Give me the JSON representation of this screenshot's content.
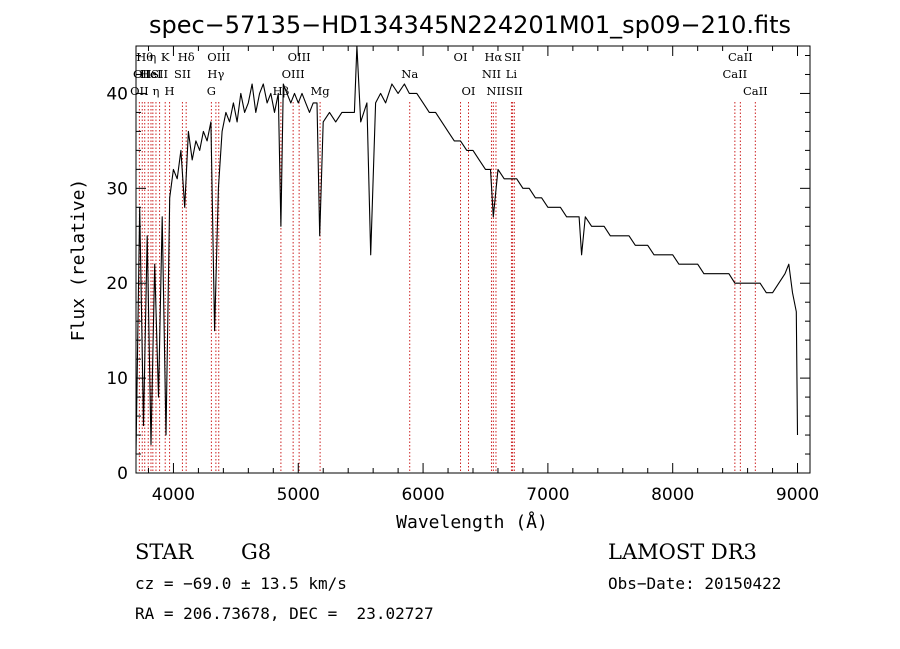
{
  "chart_data": {
    "type": "line",
    "title": "spec−57135−HD134345N224201M01_sp09−210.fits",
    "xlabel": "Wavelength (Å)",
    "ylabel": "Flux (relative)",
    "xlim": [
      3700,
      9100
    ],
    "ylim": [
      0,
      45
    ],
    "xticks": [
      4000,
      5000,
      6000,
      7000,
      8000,
      9000
    ],
    "yticks": [
      0,
      10,
      20,
      30,
      40
    ],
    "grid": false,
    "series": [
      {
        "name": "flux",
        "x": [
          3700,
          3730,
          3760,
          3790,
          3820,
          3850,
          3880,
          3910,
          3940,
          3970,
          4000,
          4030,
          4060,
          4090,
          4120,
          4150,
          4180,
          4210,
          4240,
          4270,
          4300,
          4330,
          4360,
          4390,
          4420,
          4450,
          4480,
          4510,
          4540,
          4570,
          4600,
          4630,
          4660,
          4690,
          4720,
          4750,
          4780,
          4810,
          4840,
          4861,
          4880,
          4910,
          4940,
          4970,
          5000,
          5030,
          5060,
          5090,
          5120,
          5150,
          5172,
          5200,
          5250,
          5300,
          5350,
          5400,
          5450,
          5470,
          5500,
          5550,
          5580,
          5620,
          5660,
          5700,
          5750,
          5800,
          5850,
          5890,
          5950,
          6000,
          6050,
          6100,
          6150,
          6200,
          6250,
          6300,
          6350,
          6400,
          6450,
          6500,
          6540,
          6563,
          6600,
          6650,
          6700,
          6750,
          6800,
          6850,
          6900,
          6950,
          7000,
          7050,
          7100,
          7150,
          7200,
          7250,
          7270,
          7300,
          7350,
          7400,
          7450,
          7500,
          7550,
          7600,
          7650,
          7700,
          7750,
          7800,
          7850,
          7900,
          7950,
          8000,
          8050,
          8100,
          8150,
          8200,
          8250,
          8300,
          8350,
          8400,
          8450,
          8498,
          8542,
          8600,
          8662,
          8700,
          8750,
          8800,
          8850,
          8900,
          8930,
          8960,
          8990,
          9000
        ],
        "values": [
          2,
          28,
          5,
          25,
          3,
          22,
          8,
          27,
          4,
          29,
          32,
          31,
          34,
          28,
          36,
          33,
          35,
          34,
          36,
          35,
          37,
          15,
          30,
          36,
          38,
          37,
          39,
          37,
          40,
          38,
          39,
          41,
          38,
          40,
          41,
          39,
          40,
          38,
          40,
          26,
          41,
          40,
          39,
          40,
          39,
          40,
          39,
          38,
          39,
          39,
          25,
          37,
          38,
          37,
          38,
          38,
          38,
          45,
          37,
          39,
          23,
          39,
          40,
          39,
          41,
          40,
          41,
          40,
          40,
          39,
          38,
          38,
          37,
          36,
          35,
          35,
          34,
          34,
          33,
          32,
          32,
          27,
          32,
          31,
          31,
          31,
          30,
          30,
          29,
          29,
          28,
          28,
          28,
          27,
          27,
          27,
          23,
          27,
          26,
          26,
          26,
          25,
          25,
          25,
          25,
          24,
          24,
          24,
          23,
          23,
          23,
          23,
          22,
          22,
          22,
          22,
          21,
          21,
          21,
          21,
          21,
          20,
          20,
          20,
          20,
          20,
          19,
          19,
          20,
          21,
          22,
          19,
          17,
          4
        ]
      }
    ],
    "line_markers": [
      {
        "w": 3727,
        "row": 2,
        "label": "OII"
      },
      {
        "w": 3750,
        "row": 1,
        "label": "OII"
      },
      {
        "w": 3770,
        "row": 0,
        "label": "Hθ"
      },
      {
        "w": 3798,
        "row": 1,
        "label": "He"
      },
      {
        "w": 3820,
        "row": 1,
        "label": "HeI"
      },
      {
        "w": 3835,
        "row": 0,
        "label": "η"
      },
      {
        "w": 3860,
        "row": 2,
        "label": "η"
      },
      {
        "w": 3889,
        "row": 1,
        "label": "SII"
      },
      {
        "w": 3934,
        "row": 0,
        "label": "K"
      },
      {
        "w": 3969,
        "row": 2,
        "label": "H"
      },
      {
        "w": 4072,
        "row": 1,
        "label": "SII"
      },
      {
        "w": 4102,
        "row": 0,
        "label": "Hδ"
      },
      {
        "w": 4304,
        "row": 2,
        "label": "G"
      },
      {
        "w": 4340,
        "row": 1,
        "label": "Hγ"
      },
      {
        "w": 4363,
        "row": 0,
        "label": "OIII"
      },
      {
        "w": 4861,
        "row": 2,
        "label": "Hβ"
      },
      {
        "w": 4959,
        "row": 1,
        "label": "OIII"
      },
      {
        "w": 5007,
        "row": 0,
        "label": "OIII"
      },
      {
        "w": 5175,
        "row": 2,
        "label": "Mg"
      },
      {
        "w": 5893,
        "row": 1,
        "label": "Na"
      },
      {
        "w": 6300,
        "row": 0,
        "label": "OI"
      },
      {
        "w": 6364,
        "row": 2,
        "label": "OI"
      },
      {
        "w": 6548,
        "row": 1,
        "label": "NII"
      },
      {
        "w": 6563,
        "row": 0,
        "label": "Hα"
      },
      {
        "w": 6584,
        "row": 2,
        "label": "NII"
      },
      {
        "w": 6708,
        "row": 1,
        "label": "Li"
      },
      {
        "w": 6717,
        "row": 0,
        "label": "SII"
      },
      {
        "w": 6731,
        "row": 2,
        "label": "SII"
      },
      {
        "w": 8498,
        "row": 1,
        "label": "CaII"
      },
      {
        "w": 8542,
        "row": 0,
        "label": "CaII"
      },
      {
        "w": 8662,
        "row": 2,
        "label": "CaII"
      }
    ]
  },
  "info": {
    "object_class": "STAR",
    "subclass": "G8",
    "survey": "LAMOST DR3",
    "redshift": "cz = −69.0 ± 13.5 km/s",
    "obs_date": "Obs−Date: 20150422",
    "coords": "RA = 206.73678, DEC =  23.02727"
  }
}
